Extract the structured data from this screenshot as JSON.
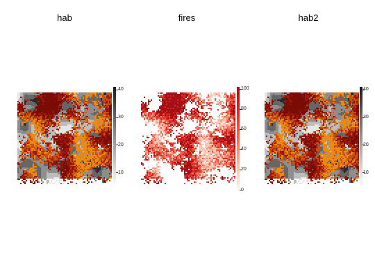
{
  "panels": [
    {
      "title": "hab",
      "legend": {
        "ticks": [
          10,
          20,
          30,
          40
        ],
        "min": 5,
        "max": 41,
        "colors": [
          "#ffffff",
          "#b5b5b5",
          "#6e6e6e",
          "#1a1a1a"
        ]
      }
    },
    {
      "title": "fires",
      "legend": {
        "ticks": [
          0,
          20,
          40,
          60,
          80,
          100
        ],
        "min": 0,
        "max": 102,
        "colors": [
          "#fff5f0",
          "#fcbba1",
          "#fb6a4a",
          "#de2d26",
          "#a50f15"
        ]
      }
    },
    {
      "title": "hab2",
      "legend": {
        "ticks": [
          10,
          20,
          30,
          40
        ],
        "min": 5,
        "max": 41,
        "colors": [
          "#ffffff",
          "#b5b5b5",
          "#6e6e6e",
          "#1a1a1a"
        ]
      }
    }
  ],
  "colors": {
    "fire_orange": "#e98a15",
    "fire_dark_orange": "#c8520c",
    "fire_red": "#9e1a08",
    "fire_dark_red": "#7a0c05"
  }
}
